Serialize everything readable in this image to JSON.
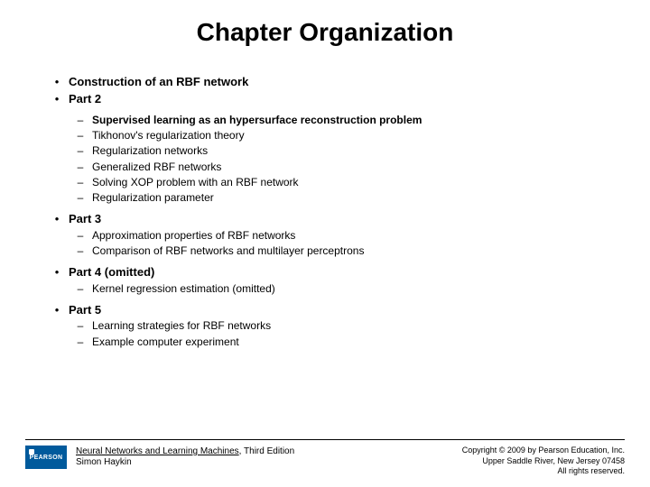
{
  "title": "Chapter Organization",
  "bullets_l1_a": [
    {
      "text": "Construction of an RBF network",
      "bold": true
    },
    {
      "text": "Part 2",
      "bold": true
    }
  ],
  "subs_a": [
    {
      "text": "Supervised learning as an hypersurface reconstruction problem",
      "bold": true
    },
    {
      "text": "Tikhonov's regularization theory",
      "bold": false
    },
    {
      "text": "Regularization networks",
      "bold": false
    },
    {
      "text": "Generalized RBF networks",
      "bold": false
    },
    {
      "text": "Solving XOP problem with an RBF network",
      "bold": false
    },
    {
      "text": "Regularization parameter",
      "bold": false
    }
  ],
  "part3": {
    "text": "Part 3",
    "bold": true
  },
  "subs_b": [
    {
      "text": "Approximation properties of RBF networks",
      "bold": false
    },
    {
      "text": "Comparison of RBF networks and multilayer perceptrons",
      "bold": false
    }
  ],
  "part4": {
    "text": "Part 4 (omitted)",
    "bold": true
  },
  "subs_c": [
    {
      "text": "Kernel regression estimation (omitted)",
      "bold": false
    }
  ],
  "part5": {
    "text": "Part 5",
    "bold": true
  },
  "subs_d": [
    {
      "text": "Learning strategies for RBF networks",
      "bold": false
    },
    {
      "text": "Example computer experiment",
      "bold": false
    }
  ],
  "footer": {
    "logo_text": "PEARSON",
    "book_title": "Neural Networks and Learning Machines",
    "book_edition": ", Third Edition",
    "author": "Simon Haykin",
    "copyright1": "Copyright © 2009 by Pearson Education, Inc.",
    "copyright2": "Upper Saddle River, New Jersey 07458",
    "copyright3": "All rights reserved."
  },
  "glyphs": {
    "bullet": "•",
    "dash": "–"
  }
}
